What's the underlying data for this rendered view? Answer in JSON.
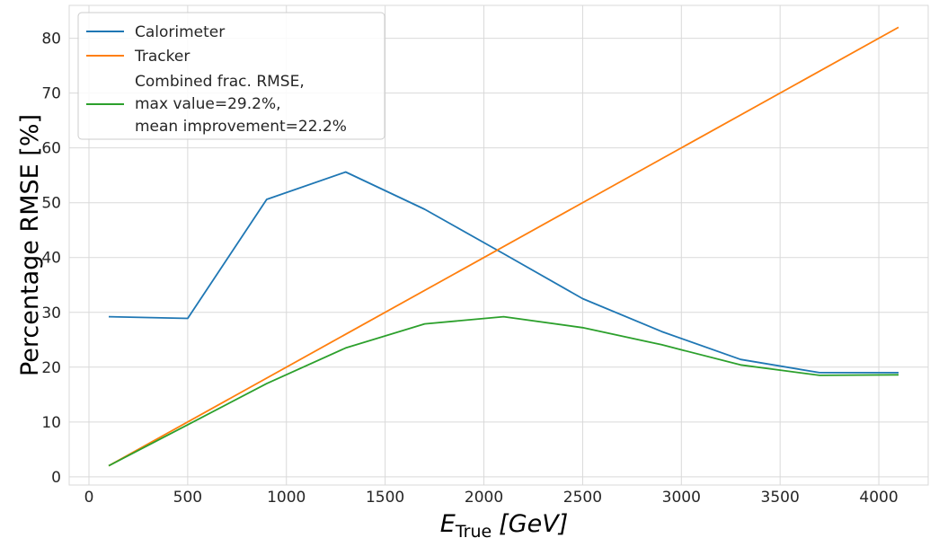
{
  "chart_data": {
    "type": "line",
    "xlabel": {
      "base": "E",
      "sub": "True",
      "unit": "[GeV]"
    },
    "ylabel": "Percentage RMSE [%]",
    "xlim": [
      -100,
      4250
    ],
    "ylim": [
      -1.5,
      86
    ],
    "xticks": [
      0,
      500,
      1000,
      1500,
      2000,
      2500,
      3000,
      3500,
      4000
    ],
    "yticks": [
      0,
      10,
      20,
      30,
      40,
      50,
      60,
      70,
      80
    ],
    "grid": true,
    "legend_position": "top-left",
    "series": [
      {
        "name": "Calorimeter",
        "color": "#1f77b4",
        "x": [
          100,
          500,
          900,
          1300,
          1700,
          2100,
          2500,
          2900,
          3300,
          3700,
          4100
        ],
        "y": [
          29.2,
          28.9,
          50.6,
          55.6,
          48.8,
          40.7,
          32.5,
          26.5,
          21.4,
          19.0,
          19.0
        ]
      },
      {
        "name": "Tracker",
        "color": "#ff7f0e",
        "x": [
          100,
          4100
        ],
        "y": [
          2.0,
          82.0
        ]
      },
      {
        "name_lines": [
          "Combined frac. RMSE,",
          "max value=29.2%,",
          "mean improvement=22.2%"
        ],
        "color": "#2ca02c",
        "x": [
          100,
          500,
          900,
          1300,
          1700,
          2100,
          2500,
          2900,
          3300,
          3700,
          4100
        ],
        "y": [
          2.0,
          9.5,
          17.0,
          23.5,
          27.9,
          29.2,
          27.2,
          24.1,
          20.4,
          18.5,
          18.6
        ]
      }
    ]
  }
}
